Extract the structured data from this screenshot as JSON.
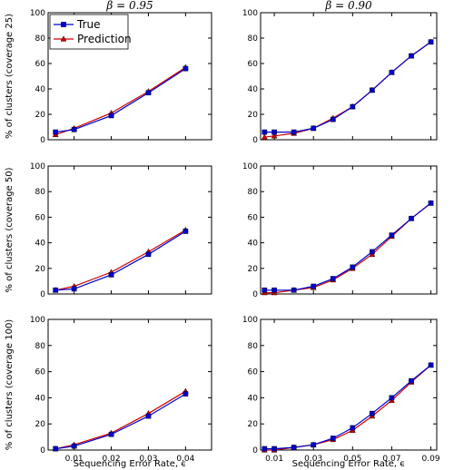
{
  "figure": {
    "column_titles": [
      "β = 0.95",
      "β = 0.90"
    ],
    "row_ylabels": [
      "% of clusters (coverage 25)",
      "% of clusters (coverage 50)",
      "% of clusters (coverage 100)"
    ],
    "xlabel": "Sequencing Error Rate, ϵ",
    "legend": {
      "placement": "top-left of first panel",
      "entries": [
        {
          "name": "True",
          "color": "#0000cc",
          "marker": "square"
        },
        {
          "name": "Prediction",
          "color": "#cc0000",
          "marker": "triangle"
        }
      ]
    }
  },
  "chart_data": [
    {
      "type": "line",
      "row": 0,
      "col": 0,
      "ylabel": "% of clusters (coverage 25)",
      "xlim": [
        0.003,
        0.047
      ],
      "ylim": [
        0,
        100
      ],
      "xticks": [
        0.01,
        0.02,
        0.03,
        0.04
      ],
      "xtick_labels": [
        "0.01",
        "0.02",
        "0.03",
        "0.04"
      ],
      "yticks": [
        0,
        20,
        40,
        60,
        80,
        100
      ],
      "ytick_labels": [
        "0",
        "20",
        "40",
        "60",
        "80",
        "100"
      ],
      "x": [
        0.005,
        0.01,
        0.02,
        0.03,
        0.04
      ],
      "series": [
        {
          "name": "True",
          "values": [
            6,
            8,
            19,
            37,
            56
          ]
        },
        {
          "name": "Prediction",
          "values": [
            4,
            9,
            21,
            38,
            57
          ]
        }
      ]
    },
    {
      "type": "line",
      "row": 0,
      "col": 1,
      "ylabel": "",
      "xlim": [
        0.003,
        0.093
      ],
      "ylim": [
        0,
        100
      ],
      "xticks": [
        0.01,
        0.03,
        0.05,
        0.07,
        0.09
      ],
      "xtick_labels": [
        "0.01",
        "0.03",
        "0.05",
        "0.07",
        "0.09"
      ],
      "yticks": [
        0,
        20,
        40,
        60,
        80,
        100
      ],
      "ytick_labels": [
        "0",
        "20",
        "40",
        "60",
        "80",
        "100"
      ],
      "x": [
        0.005,
        0.01,
        0.02,
        0.03,
        0.04,
        0.05,
        0.06,
        0.07,
        0.08,
        0.09
      ],
      "series": [
        {
          "name": "True",
          "values": [
            6,
            6,
            6,
            9,
            16,
            26,
            39,
            53,
            66,
            77
          ]
        },
        {
          "name": "Prediction",
          "values": [
            2,
            3,
            5,
            9,
            17,
            26,
            39,
            53,
            66,
            77
          ]
        }
      ]
    },
    {
      "type": "line",
      "row": 1,
      "col": 0,
      "ylabel": "% of clusters (coverage 50)",
      "xlim": [
        0.003,
        0.047
      ],
      "ylim": [
        0,
        100
      ],
      "xticks": [
        0.01,
        0.02,
        0.03,
        0.04
      ],
      "xtick_labels": [
        "0.01",
        "0.02",
        "0.03",
        "0.04"
      ],
      "yticks": [
        0,
        20,
        40,
        60,
        80,
        100
      ],
      "ytick_labels": [
        "0",
        "20",
        "40",
        "60",
        "80",
        "100"
      ],
      "x": [
        0.005,
        0.01,
        0.02,
        0.03,
        0.04
      ],
      "series": [
        {
          "name": "True",
          "values": [
            3,
            4,
            15,
            31,
            49
          ]
        },
        {
          "name": "Prediction",
          "values": [
            3,
            6,
            17,
            33,
            50
          ]
        }
      ]
    },
    {
      "type": "line",
      "row": 1,
      "col": 1,
      "ylabel": "",
      "xlim": [
        0.003,
        0.093
      ],
      "ylim": [
        0,
        100
      ],
      "xticks": [
        0.01,
        0.03,
        0.05,
        0.07,
        0.09
      ],
      "xtick_labels": [
        "0.01",
        "0.03",
        "0.05",
        "0.07",
        "0.09"
      ],
      "yticks": [
        0,
        20,
        40,
        60,
        80,
        100
      ],
      "ytick_labels": [
        "0",
        "20",
        "40",
        "60",
        "80",
        "100"
      ],
      "x": [
        0.005,
        0.01,
        0.02,
        0.03,
        0.04,
        0.05,
        0.06,
        0.07,
        0.08,
        0.09
      ],
      "series": [
        {
          "name": "True",
          "values": [
            3,
            3,
            3,
            6,
            12,
            21,
            33,
            46,
            59,
            71
          ]
        },
        {
          "name": "Prediction",
          "values": [
            1,
            1,
            3,
            5,
            11,
            20,
            31,
            45,
            59,
            71
          ]
        }
      ]
    },
    {
      "type": "line",
      "row": 2,
      "col": 0,
      "ylabel": "% of clusters (coverage 100)",
      "xlim": [
        0.003,
        0.047
      ],
      "ylim": [
        0,
        100
      ],
      "xticks": [
        0.01,
        0.02,
        0.03,
        0.04
      ],
      "xtick_labels": [
        "0.01",
        "0.02",
        "0.03",
        "0.04"
      ],
      "yticks": [
        0,
        20,
        40,
        60,
        80,
        100
      ],
      "ytick_labels": [
        "0",
        "20",
        "40",
        "60",
        "80",
        "100"
      ],
      "x": [
        0.005,
        0.01,
        0.02,
        0.03,
        0.04
      ],
      "series": [
        {
          "name": "True",
          "values": [
            1,
            3,
            12,
            26,
            43
          ]
        },
        {
          "name": "Prediction",
          "values": [
            1,
            4,
            13,
            28,
            45
          ]
        }
      ]
    },
    {
      "type": "line",
      "row": 2,
      "col": 1,
      "ylabel": "",
      "xlim": [
        0.003,
        0.093
      ],
      "ylim": [
        0,
        100
      ],
      "xticks": [
        0.01,
        0.03,
        0.05,
        0.07,
        0.09
      ],
      "xtick_labels": [
        "0.01",
        "0.03",
        "0.05",
        "0.07",
        "0.09"
      ],
      "yticks": [
        0,
        20,
        40,
        60,
        80,
        100
      ],
      "ytick_labels": [
        "0",
        "20",
        "40",
        "60",
        "80",
        "100"
      ],
      "x": [
        0.005,
        0.01,
        0.02,
        0.03,
        0.04,
        0.05,
        0.06,
        0.07,
        0.08,
        0.09
      ],
      "series": [
        {
          "name": "True",
          "values": [
            1,
            1,
            2,
            4,
            9,
            17,
            28,
            40,
            53,
            65
          ]
        },
        {
          "name": "Prediction",
          "values": [
            0,
            0,
            2,
            4,
            8,
            15,
            26,
            38,
            52,
            65
          ]
        }
      ]
    }
  ]
}
